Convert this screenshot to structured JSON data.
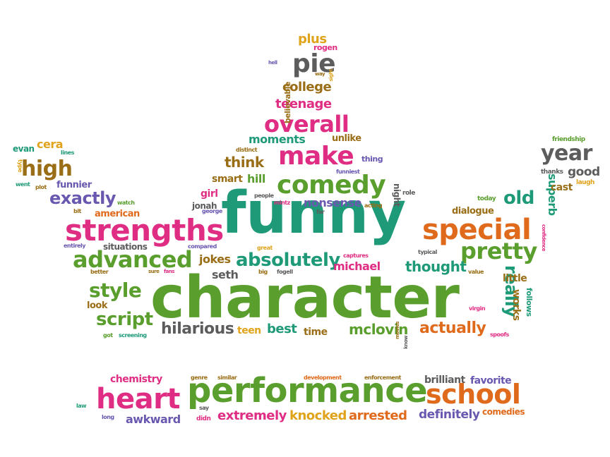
{
  "colors": {
    "green": "#5a9e2d",
    "teal": "#1f9a78",
    "magenta": "#e02d84",
    "orange": "#e06a1c",
    "purple": "#6a58b0",
    "olive": "#9a6e16",
    "gray": "#5c5c5c",
    "gold": "#e0a31c"
  },
  "words": {
    "funny": "funny",
    "character": "character",
    "performance": "performance",
    "strengths": "strengths",
    "special": "special",
    "school": "school",
    "heart": "heart",
    "comedy": "comedy",
    "make": "make",
    "overall": "overall",
    "advanced": "advanced",
    "pretty": "pretty",
    "high": "high",
    "year": "year",
    "pie": "pie",
    "absolutely": "absolutely",
    "style": "style",
    "script": "script",
    "hilarious": "hilarious",
    "actually": "actually",
    "mclovin": "mclovin",
    "exactly": "exactly",
    "college": "college",
    "teenage": "teenage",
    "moments": "moments",
    "think": "think",
    "thought": "thought",
    "old": "old",
    "really": "really",
    "extremely": "extremely",
    "knocked": "knocked",
    "arrested": "arrested",
    "definitely": "definitely",
    "awkward": "awkward",
    "chemistry": "chemistry",
    "brilliant": "brilliant",
    "favorite": "favorite",
    "comedies": "comedies",
    "best": "best",
    "teen": "teen",
    "time": "time",
    "jokes": "jokes",
    "seth": "seth",
    "michael": "michael",
    "nonsense": "nonsense",
    "smart": "smart",
    "hill": "hill",
    "girl": "girl",
    "jonah": "jonah",
    "american": "american",
    "funnier": "funnier",
    "cera": "cera",
    "evan": "evan",
    "plus": "plus",
    "rogen": "rogen",
    "believable": "believable",
    "unlike": "unlike",
    "dialogue": "dialogue",
    "superb": "superb",
    "good": "good",
    "cast": "cast",
    "little": "little",
    "works": "works",
    "follows": "follows",
    "situations": "situations",
    "look": "look",
    "night": "night",
    "friendship": "friendship",
    "thanks": "thanks",
    "laugh": "laugh",
    "today": "today",
    "role": "role",
    "thing": "thing",
    "funniest": "funniest",
    "distinct": "distinct",
    "lines": "lines",
    "type": "type",
    "went": "went",
    "plot": "plot",
    "watch": "watch",
    "bit": "bit",
    "entirely": "entirely",
    "better": "better",
    "sure": "sure",
    "fans": "fans",
    "compared": "compared",
    "great": "great",
    "big": "big",
    "fogell": "fogell",
    "captures": "captures",
    "typical": "typical",
    "value": "value",
    "virgin": "virgin",
    "spoofs": "spoofs",
    "know": "know",
    "movies": "movies",
    "got": "got",
    "screening": "screening",
    "people": "people",
    "mintz": "mintz",
    "george": "george",
    "far": "far",
    "acting": "acting",
    "way": "way",
    "sight": "sight",
    "hell": "hell",
    "confidence": "confidence",
    "genre": "genre",
    "similar": "similar",
    "development": "development",
    "enforcement": "enforcement",
    "law": "law",
    "long": "long",
    "say": "say",
    "didn": "didn"
  }
}
